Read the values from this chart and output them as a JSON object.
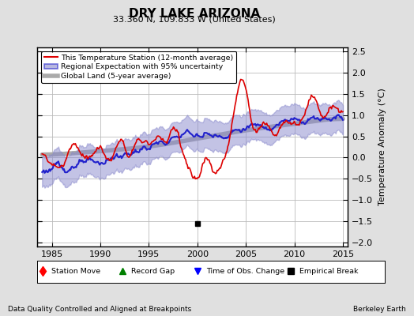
{
  "title": "DRY LAKE ARIZONA",
  "subtitle": "33.360 N, 109.833 W (United States)",
  "ylabel": "Temperature Anomaly (°C)",
  "xlabel_note": "Data Quality Controlled and Aligned at Breakpoints",
  "xlabel_credit": "Berkeley Earth",
  "ylim": [
    -2.1,
    2.6
  ],
  "xlim": [
    1983.5,
    2015.5
  ],
  "yticks": [
    -2,
    -1.5,
    -1,
    -0.5,
    0,
    0.5,
    1,
    1.5,
    2,
    2.5
  ],
  "xticks": [
    1985,
    1990,
    1995,
    2000,
    2005,
    2010,
    2015
  ],
  "bg_color": "#e0e0e0",
  "plot_bg_color": "#ffffff",
  "grid_color": "#bbbbbb",
  "station_color": "#dd0000",
  "regional_color": "#2222cc",
  "regional_fill_color": "#8888cc",
  "global_color": "#aaaaaa",
  "empirical_break_year": 2000.0,
  "empirical_break_val": -1.55,
  "legend_labels": [
    "This Temperature Station (12-month average)",
    "Regional Expectation with 95% uncertainty",
    "Global Land (5-year average)"
  ],
  "marker_labels": [
    "Station Move",
    "Record Gap",
    "Time of Obs. Change",
    "Empirical Break"
  ]
}
